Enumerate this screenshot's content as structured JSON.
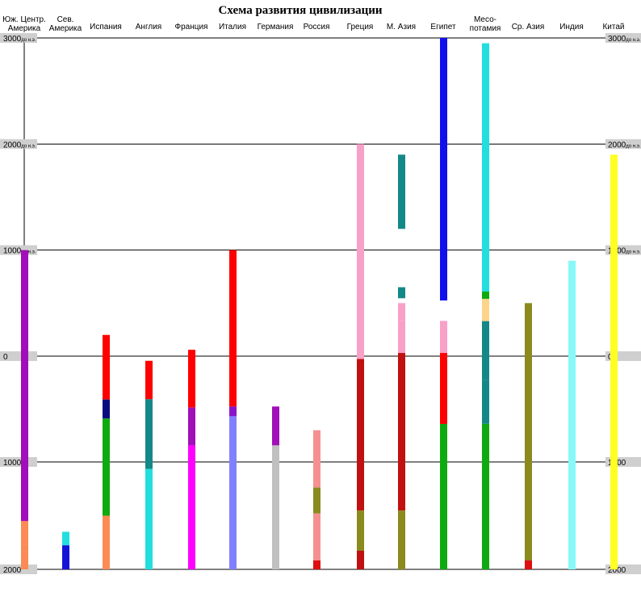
{
  "chart_data": {
    "type": "timeline",
    "title": "Схема развития цивилизации",
    "y_axis_labels": [
      {
        "year": -3000,
        "left": "3000",
        "right": "3000",
        "suffix": "дo н.э."
      },
      {
        "year": -2000,
        "left": "2000",
        "right": "2000",
        "suffix": "дo н.э."
      },
      {
        "year": -1000,
        "left": "1000",
        "right": "1000",
        "suffix": "дo н.э."
      },
      {
        "year": 0,
        "left": "0",
        "right": "0",
        "suffix": ""
      },
      {
        "year": 1000,
        "left": "1000",
        "right": "1000",
        "suffix": ""
      },
      {
        "year": 2000,
        "left": "2000",
        "right": "2000",
        "suffix": ""
      }
    ],
    "regions": [
      {
        "label": [
          "Юж. Центр.",
          "Америка"
        ]
      },
      {
        "label": [
          "Сев.",
          "Америка"
        ]
      },
      {
        "label": [
          "Испания"
        ]
      },
      {
        "label": [
          "Англия"
        ]
      },
      {
        "label": [
          "Франция"
        ]
      },
      {
        "label": [
          "Италия"
        ]
      },
      {
        "label": [
          "Германия"
        ]
      },
      {
        "label": [
          "Россия"
        ]
      },
      {
        "label": [
          "Греция"
        ]
      },
      {
        "label": [
          "М. Азия"
        ]
      },
      {
        "label": [
          "Египет"
        ]
      },
      {
        "label": [
          "Месо-",
          "потамия"
        ]
      },
      {
        "label": [
          "Ср. Азия"
        ]
      },
      {
        "label": [
          "Индия"
        ]
      },
      {
        "label": [
          "Китай"
        ]
      }
    ],
    "bars": [
      {
        "col": "sam",
        "from": -1000,
        "to": 1800,
        "color": "#a10fb8"
      },
      {
        "col": "sam",
        "from": 1550,
        "to": 1800,
        "color": "#fb8c55"
      },
      {
        "col": "sam",
        "from": 1800,
        "to": 2000,
        "color": "#fb8c55"
      },
      {
        "col": "nam",
        "from": 1650,
        "to": 1776,
        "color": "#22dede"
      },
      {
        "col": "nam",
        "from": 1776,
        "to": 2000,
        "color": "#1414d8"
      },
      {
        "col": "spa",
        "from": -200,
        "to": 410,
        "color": "#ff0000"
      },
      {
        "col": "spa",
        "from": 410,
        "to": 590,
        "color": "#0a0a80"
      },
      {
        "col": "spa",
        "from": 590,
        "to": 1000,
        "color": "#0faa0f"
      },
      {
        "col": "spa",
        "from": 1000,
        "to": 1500,
        "color": "#0faa0f"
      },
      {
        "col": "spa",
        "from": 1500,
        "to": 2000,
        "color": "#fb8c55"
      },
      {
        "col": "eng",
        "from": 44,
        "to": 407,
        "color": "#ff0000"
      },
      {
        "col": "eng",
        "from": 407,
        "to": 1066,
        "color": "#148888"
      },
      {
        "col": "eng",
        "from": 1066,
        "to": 2000,
        "color": "#22dede"
      },
      {
        "col": "fra",
        "from": -60,
        "to": 486,
        "color": "#ff0000"
      },
      {
        "col": "fra",
        "from": 486,
        "to": 843,
        "color": "#a10fb8"
      },
      {
        "col": "fra",
        "from": 843,
        "to": 2000,
        "color": "#ff00ff"
      },
      {
        "col": "ita",
        "from": -1000,
        "to": 476,
        "color": "#ff0000"
      },
      {
        "col": "ita",
        "from": 476,
        "to": 568,
        "color": "#8a14c8"
      },
      {
        "col": "ita",
        "from": 568,
        "to": 2000,
        "color": "#8080ff"
      },
      {
        "col": "ger",
        "from": 476,
        "to": 843,
        "color": "#a10fb8"
      },
      {
        "col": "ger",
        "from": 843,
        "to": 2000,
        "color": "#c0c0c0"
      },
      {
        "col": "rus",
        "from": 700,
        "to": 1238,
        "color": "#f59090"
      },
      {
        "col": "rus",
        "from": 1238,
        "to": 1480,
        "color": "#8a8a1e"
      },
      {
        "col": "rus",
        "from": 1480,
        "to": 1917,
        "color": "#f59090"
      },
      {
        "col": "rus",
        "from": 1917,
        "to": 2000,
        "color": "#dd1111"
      },
      {
        "col": "gre",
        "from": -2000,
        "to": 27,
        "color": "#f8a0c8"
      },
      {
        "col": "gre",
        "from": 27,
        "to": 1453,
        "color": "#c01010"
      },
      {
        "col": "gre",
        "from": 1453,
        "to": 1827,
        "color": "#8a8a1e"
      },
      {
        "col": "gre",
        "from": 1827,
        "to": 2000,
        "color": "#c01010"
      },
      {
        "col": "asi",
        "from": -1900,
        "to": -1200,
        "color": "#148888"
      },
      {
        "col": "asi",
        "from": -650,
        "to": -546,
        "color": "#148888"
      },
      {
        "col": "asi",
        "from": -500,
        "to": -330,
        "color": "#f8a0c8"
      },
      {
        "col": "asi",
        "from": -330,
        "to": -30,
        "color": "#f8a0c8"
      },
      {
        "col": "asi",
        "from": -30,
        "to": 1453,
        "color": "#c01010"
      },
      {
        "col": "asi",
        "from": 1453,
        "to": 2000,
        "color": "#8a8a1e"
      },
      {
        "col": "egy",
        "from": -3000,
        "to": -525,
        "color": "#1010ee"
      },
      {
        "col": "egy",
        "from": -332,
        "to": -30,
        "color": "#f8a0c8"
      },
      {
        "col": "egy",
        "from": -30,
        "to": 641,
        "color": "#ff0000"
      },
      {
        "col": "egy",
        "from": 641,
        "to": 2000,
        "color": "#0faa0f"
      },
      {
        "col": "mes",
        "from": -2950,
        "to": -609,
        "color": "#22dede"
      },
      {
        "col": "mes",
        "from": -609,
        "to": -539,
        "color": "#0faa0f"
      },
      {
        "col": "mes",
        "from": -539,
        "to": -330,
        "color": "#fdd58a"
      },
      {
        "col": "mes",
        "from": -330,
        "to": 226,
        "color": "#148888"
      },
      {
        "col": "mes",
        "from": 226,
        "to": 640,
        "color": "#148888"
      },
      {
        "col": "mes",
        "from": 640,
        "to": 2000,
        "color": "#0faa0f"
      },
      {
        "col": "cas",
        "from": -500,
        "to": 1917,
        "color": "#8a8a1e"
      },
      {
        "col": "cas",
        "from": 1917,
        "to": 2000,
        "color": "#dd1111"
      },
      {
        "col": "ind",
        "from": -900,
        "to": 2000,
        "color": "#88f8f8"
      },
      {
        "col": "chn",
        "from": -1900,
        "to": 2000,
        "color": "#ffff22"
      }
    ]
  }
}
